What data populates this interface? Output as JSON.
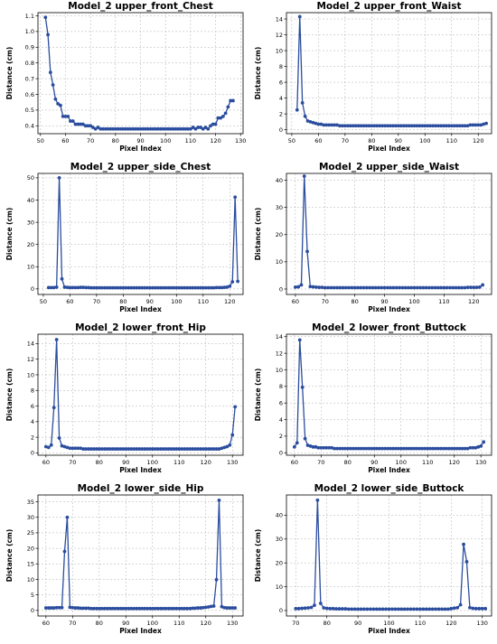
{
  "chart_data": [
    {
      "type": "line",
      "title": "Model_2 upper_front_Chest",
      "xlabel": "Pixel Index",
      "ylabel": "Distance (cm)",
      "xlim": [
        49,
        131
      ],
      "ylim": [
        0.35,
        1.12
      ],
      "xticks": [
        50,
        60,
        70,
        80,
        90,
        100,
        110,
        120,
        130
      ],
      "yticks": [
        0.4,
        0.5,
        0.6,
        0.7,
        0.8,
        0.9,
        1.0,
        1.1
      ],
      "ytick_labels": [
        "0.4",
        "0.5",
        "0.6",
        "0.7",
        "0.8",
        "0.9",
        "1.0",
        "1.1"
      ],
      "grid": true,
      "x": [
        52,
        53,
        54,
        55,
        56,
        57,
        58,
        59,
        60,
        61,
        62,
        63,
        64,
        65,
        66,
        67,
        68,
        69,
        70,
        71,
        72,
        73,
        74,
        75,
        76,
        77,
        78,
        79,
        80,
        81,
        82,
        83,
        84,
        85,
        86,
        87,
        88,
        89,
        90,
        91,
        92,
        93,
        94,
        95,
        96,
        97,
        98,
        99,
        100,
        101,
        102,
        103,
        104,
        105,
        106,
        107,
        108,
        109,
        110,
        111,
        112,
        113,
        114,
        115,
        116,
        117,
        118,
        119,
        120,
        121,
        122,
        123,
        124,
        125,
        126,
        127
      ],
      "values": [
        1.09,
        0.98,
        0.74,
        0.66,
        0.57,
        0.54,
        0.53,
        0.46,
        0.46,
        0.46,
        0.43,
        0.43,
        0.41,
        0.41,
        0.41,
        0.41,
        0.4,
        0.4,
        0.4,
        0.39,
        0.38,
        0.39,
        0.38,
        0.38,
        0.38,
        0.38,
        0.38,
        0.38,
        0.38,
        0.38,
        0.38,
        0.38,
        0.38,
        0.38,
        0.38,
        0.38,
        0.38,
        0.38,
        0.38,
        0.38,
        0.38,
        0.38,
        0.38,
        0.38,
        0.38,
        0.38,
        0.38,
        0.38,
        0.38,
        0.38,
        0.38,
        0.38,
        0.38,
        0.38,
        0.38,
        0.38,
        0.38,
        0.38,
        0.38,
        0.39,
        0.38,
        0.39,
        0.39,
        0.38,
        0.39,
        0.38,
        0.4,
        0.41,
        0.41,
        0.45,
        0.45,
        0.46,
        0.48,
        0.52,
        0.56,
        0.56
      ]
    },
    {
      "type": "line",
      "title": "Model_2 upper_front_Waist",
      "xlabel": "Pixel Index",
      "ylabel": "Distance (cm)",
      "xlim": [
        48,
        125
      ],
      "ylim": [
        -0.5,
        14.8
      ],
      "xticks": [
        50,
        60,
        70,
        80,
        90,
        100,
        110,
        120
      ],
      "yticks": [
        0,
        2,
        4,
        6,
        8,
        10,
        12,
        14
      ],
      "grid": true,
      "x": [
        52,
        53,
        54,
        55,
        56,
        57,
        58,
        59,
        60,
        61,
        62,
        63,
        64,
        65,
        66,
        67,
        68,
        69,
        70,
        71,
        72,
        73,
        74,
        75,
        76,
        77,
        78,
        79,
        80,
        81,
        82,
        83,
        84,
        85,
        86,
        87,
        88,
        89,
        90,
        91,
        92,
        93,
        94,
        95,
        96,
        97,
        98,
        99,
        100,
        101,
        102,
        103,
        104,
        105,
        106,
        107,
        108,
        109,
        110,
        111,
        112,
        113,
        114,
        115,
        116,
        117,
        118,
        119,
        120,
        121,
        122,
        123
      ],
      "values": [
        2.5,
        14.3,
        3.4,
        1.7,
        1.1,
        1.0,
        0.9,
        0.8,
        0.7,
        0.7,
        0.6,
        0.6,
        0.6,
        0.6,
        0.6,
        0.6,
        0.5,
        0.5,
        0.5,
        0.5,
        0.5,
        0.5,
        0.5,
        0.5,
        0.5,
        0.5,
        0.5,
        0.5,
        0.5,
        0.5,
        0.5,
        0.5,
        0.5,
        0.5,
        0.5,
        0.5,
        0.5,
        0.5,
        0.5,
        0.5,
        0.5,
        0.5,
        0.5,
        0.5,
        0.5,
        0.5,
        0.5,
        0.5,
        0.5,
        0.5,
        0.5,
        0.5,
        0.5,
        0.5,
        0.5,
        0.5,
        0.5,
        0.5,
        0.5,
        0.5,
        0.5,
        0.5,
        0.5,
        0.5,
        0.5,
        0.6,
        0.6,
        0.6,
        0.6,
        0.6,
        0.7,
        0.8
      ]
    },
    {
      "type": "line",
      "title": "Model_2 upper_side_Chest",
      "xlabel": "Pixel Index",
      "ylabel": "Distance (cm)",
      "xlim": [
        48,
        125
      ],
      "ylim": [
        -2.5,
        52
      ],
      "xticks": [
        50,
        60,
        70,
        80,
        90,
        100,
        110,
        120
      ],
      "yticks": [
        0,
        10,
        20,
        30,
        40,
        50
      ],
      "grid": true,
      "x": [
        52,
        53,
        54,
        55,
        56,
        57,
        58,
        59,
        60,
        61,
        62,
        63,
        64,
        65,
        66,
        67,
        68,
        69,
        70,
        71,
        72,
        73,
        74,
        75,
        76,
        77,
        78,
        79,
        80,
        81,
        82,
        83,
        84,
        85,
        86,
        87,
        88,
        89,
        90,
        91,
        92,
        93,
        94,
        95,
        96,
        97,
        98,
        99,
        100,
        101,
        102,
        103,
        104,
        105,
        106,
        107,
        108,
        109,
        110,
        111,
        112,
        113,
        114,
        115,
        116,
        117,
        118,
        119,
        120,
        121,
        122,
        123
      ],
      "values": [
        0.6,
        0.6,
        0.6,
        0.8,
        50.0,
        4.5,
        0.8,
        0.7,
        0.6,
        0.6,
        0.6,
        0.6,
        0.7,
        0.7,
        0.6,
        0.6,
        0.5,
        0.5,
        0.5,
        0.5,
        0.5,
        0.5,
        0.5,
        0.5,
        0.5,
        0.5,
        0.5,
        0.5,
        0.5,
        0.5,
        0.5,
        0.5,
        0.5,
        0.5,
        0.5,
        0.5,
        0.5,
        0.5,
        0.5,
        0.5,
        0.5,
        0.5,
        0.5,
        0.5,
        0.5,
        0.5,
        0.5,
        0.5,
        0.5,
        0.5,
        0.5,
        0.5,
        0.5,
        0.5,
        0.5,
        0.5,
        0.5,
        0.5,
        0.5,
        0.5,
        0.5,
        0.5,
        0.5,
        0.6,
        0.6,
        0.6,
        0.7,
        0.8,
        1.2,
        3.2,
        41.3,
        3.4
      ]
    },
    {
      "type": "line",
      "title": "Model_2 upper_side_Waist",
      "xlabel": "Pixel Index",
      "ylabel": "Distance (cm)",
      "xlim": [
        57,
        126
      ],
      "ylim": [
        -2,
        42.5
      ],
      "xticks": [
        60,
        70,
        80,
        90,
        100,
        110,
        120
      ],
      "yticks": [
        0,
        10,
        20,
        30,
        40
      ],
      "grid": true,
      "x": [
        60,
        61,
        62,
        63,
        64,
        65,
        66,
        67,
        68,
        69,
        70,
        71,
        72,
        73,
        74,
        75,
        76,
        77,
        78,
        79,
        80,
        81,
        82,
        83,
        84,
        85,
        86,
        87,
        88,
        89,
        90,
        91,
        92,
        93,
        94,
        95,
        96,
        97,
        98,
        99,
        100,
        101,
        102,
        103,
        104,
        105,
        106,
        107,
        108,
        109,
        110,
        111,
        112,
        113,
        114,
        115,
        116,
        117,
        118,
        119,
        120,
        121,
        122,
        123
      ],
      "values": [
        0.7,
        0.8,
        1.5,
        41.5,
        13.8,
        0.9,
        0.8,
        0.7,
        0.6,
        0.6,
        0.5,
        0.5,
        0.5,
        0.5,
        0.5,
        0.5,
        0.5,
        0.5,
        0.5,
        0.5,
        0.5,
        0.5,
        0.5,
        0.5,
        0.5,
        0.5,
        0.5,
        0.5,
        0.5,
        0.5,
        0.5,
        0.5,
        0.5,
        0.5,
        0.5,
        0.5,
        0.5,
        0.5,
        0.5,
        0.5,
        0.5,
        0.5,
        0.5,
        0.5,
        0.5,
        0.5,
        0.5,
        0.5,
        0.5,
        0.5,
        0.5,
        0.5,
        0.5,
        0.5,
        0.5,
        0.5,
        0.5,
        0.5,
        0.6,
        0.6,
        0.6,
        0.6,
        0.7,
        1.5
      ]
    },
    {
      "type": "line",
      "title": "Model_2 lower_front_Hip",
      "xlabel": "Pixel Index",
      "ylabel": "Distance (cm)",
      "xlim": [
        57,
        134
      ],
      "ylim": [
        -0.3,
        15.2
      ],
      "xticks": [
        60,
        70,
        80,
        90,
        100,
        110,
        120,
        130
      ],
      "yticks": [
        0,
        2,
        4,
        6,
        8,
        10,
        12,
        14
      ],
      "grid": true,
      "x": [
        60,
        61,
        62,
        63,
        64,
        65,
        66,
        67,
        68,
        69,
        70,
        71,
        72,
        73,
        74,
        75,
        76,
        77,
        78,
        79,
        80,
        81,
        82,
        83,
        84,
        85,
        86,
        87,
        88,
        89,
        90,
        91,
        92,
        93,
        94,
        95,
        96,
        97,
        98,
        99,
        100,
        101,
        102,
        103,
        104,
        105,
        106,
        107,
        108,
        109,
        110,
        111,
        112,
        113,
        114,
        115,
        116,
        117,
        118,
        119,
        120,
        121,
        122,
        123,
        124,
        125,
        126,
        127,
        128,
        129,
        130,
        131
      ],
      "values": [
        0.8,
        0.7,
        1.0,
        5.8,
        14.5,
        1.9,
        0.9,
        0.8,
        0.7,
        0.6,
        0.6,
        0.6,
        0.6,
        0.6,
        0.5,
        0.5,
        0.5,
        0.5,
        0.5,
        0.5,
        0.5,
        0.5,
        0.5,
        0.5,
        0.5,
        0.5,
        0.5,
        0.5,
        0.5,
        0.5,
        0.5,
        0.5,
        0.5,
        0.5,
        0.5,
        0.5,
        0.5,
        0.5,
        0.5,
        0.5,
        0.5,
        0.5,
        0.5,
        0.5,
        0.5,
        0.5,
        0.5,
        0.5,
        0.5,
        0.5,
        0.5,
        0.5,
        0.5,
        0.5,
        0.5,
        0.5,
        0.5,
        0.5,
        0.5,
        0.5,
        0.5,
        0.5,
        0.5,
        0.5,
        0.5,
        0.5,
        0.6,
        0.7,
        0.8,
        1.0,
        2.3,
        5.9
      ]
    },
    {
      "type": "line",
      "title": "Model_2 lower_front_Buttock",
      "xlabel": "Pixel Index",
      "ylabel": "Distance (cm)",
      "xlim": [
        57,
        134
      ],
      "ylim": [
        -0.3,
        14.3
      ],
      "xticks": [
        60,
        70,
        80,
        90,
        100,
        110,
        120,
        130
      ],
      "yticks": [
        0,
        2,
        4,
        6,
        8,
        10,
        12,
        14
      ],
      "grid": true,
      "x": [
        60,
        61,
        62,
        63,
        64,
        65,
        66,
        67,
        68,
        69,
        70,
        71,
        72,
        73,
        74,
        75,
        76,
        77,
        78,
        79,
        80,
        81,
        82,
        83,
        84,
        85,
        86,
        87,
        88,
        89,
        90,
        91,
        92,
        93,
        94,
        95,
        96,
        97,
        98,
        99,
        100,
        101,
        102,
        103,
        104,
        105,
        106,
        107,
        108,
        109,
        110,
        111,
        112,
        113,
        114,
        115,
        116,
        117,
        118,
        119,
        120,
        121,
        122,
        123,
        124,
        125,
        126,
        127,
        128,
        129,
        130,
        131
      ],
      "values": [
        0.7,
        1.2,
        13.6,
        7.9,
        1.7,
        0.9,
        0.8,
        0.7,
        0.7,
        0.6,
        0.6,
        0.6,
        0.6,
        0.6,
        0.6,
        0.5,
        0.5,
        0.5,
        0.5,
        0.5,
        0.5,
        0.5,
        0.5,
        0.5,
        0.5,
        0.5,
        0.5,
        0.5,
        0.5,
        0.5,
        0.5,
        0.5,
        0.5,
        0.5,
        0.5,
        0.5,
        0.5,
        0.5,
        0.5,
        0.5,
        0.5,
        0.5,
        0.5,
        0.5,
        0.5,
        0.5,
        0.5,
        0.5,
        0.5,
        0.5,
        0.5,
        0.5,
        0.5,
        0.5,
        0.5,
        0.5,
        0.5,
        0.5,
        0.5,
        0.5,
        0.5,
        0.5,
        0.5,
        0.5,
        0.5,
        0.5,
        0.6,
        0.6,
        0.6,
        0.7,
        0.8,
        1.3
      ]
    },
    {
      "type": "line",
      "title": "Model_2 lower_side_Hip",
      "xlabel": "Pixel Index",
      "ylabel": "Distance (cm)",
      "xlim": [
        57,
        134
      ],
      "ylim": [
        -1.8,
        37.2
      ],
      "xticks": [
        60,
        70,
        80,
        90,
        100,
        110,
        120,
        130
      ],
      "yticks": [
        0,
        5,
        10,
        15,
        20,
        25,
        30,
        35
      ],
      "grid": true,
      "x": [
        60,
        61,
        62,
        63,
        64,
        65,
        66,
        67,
        68,
        69,
        70,
        71,
        72,
        73,
        74,
        75,
        76,
        77,
        78,
        79,
        80,
        81,
        82,
        83,
        84,
        85,
        86,
        87,
        88,
        89,
        90,
        91,
        92,
        93,
        94,
        95,
        96,
        97,
        98,
        99,
        100,
        101,
        102,
        103,
        104,
        105,
        106,
        107,
        108,
        109,
        110,
        111,
        112,
        113,
        114,
        115,
        116,
        117,
        118,
        119,
        120,
        121,
        122,
        123,
        124,
        125,
        126,
        127,
        128,
        129,
        130,
        131
      ],
      "values": [
        0.8,
        0.8,
        0.8,
        0.8,
        0.9,
        0.9,
        0.9,
        19.0,
        30.0,
        1.0,
        0.9,
        0.8,
        0.8,
        0.7,
        0.7,
        0.7,
        0.7,
        0.6,
        0.6,
        0.6,
        0.6,
        0.6,
        0.6,
        0.6,
        0.6,
        0.6,
        0.6,
        0.6,
        0.6,
        0.6,
        0.6,
        0.6,
        0.6,
        0.6,
        0.6,
        0.6,
        0.6,
        0.6,
        0.6,
        0.6,
        0.6,
        0.6,
        0.6,
        0.6,
        0.6,
        0.6,
        0.6,
        0.6,
        0.6,
        0.6,
        0.6,
        0.6,
        0.6,
        0.6,
        0.6,
        0.7,
        0.7,
        0.8,
        0.8,
        0.9,
        1.0,
        1.1,
        1.3,
        1.4,
        9.9,
        35.5,
        1.2,
        0.9,
        0.8,
        0.8,
        0.8,
        0.8
      ]
    },
    {
      "type": "line",
      "title": "Model_2 lower_side_Buttock",
      "xlabel": "Pixel Index",
      "ylabel": "Distance (cm)",
      "xlim": [
        67,
        133
      ],
      "ylim": [
        -2.3,
        48.5
      ],
      "xticks": [
        70,
        80,
        90,
        100,
        110,
        120,
        130
      ],
      "yticks": [
        0,
        10,
        20,
        30,
        40
      ],
      "grid": true,
      "x": [
        70,
        71,
        72,
        73,
        74,
        75,
        76,
        77,
        78,
        79,
        80,
        81,
        82,
        83,
        84,
        85,
        86,
        87,
        88,
        89,
        90,
        91,
        92,
        93,
        94,
        95,
        96,
        97,
        98,
        99,
        100,
        101,
        102,
        103,
        104,
        105,
        106,
        107,
        108,
        109,
        110,
        111,
        112,
        113,
        114,
        115,
        116,
        117,
        118,
        119,
        120,
        121,
        122,
        123,
        124,
        125,
        126,
        127,
        128,
        129,
        130,
        131
      ],
      "values": [
        0.8,
        0.8,
        0.9,
        1.0,
        1.1,
        1.3,
        2.2,
        46.3,
        3.0,
        1.1,
        0.9,
        0.8,
        0.8,
        0.7,
        0.7,
        0.7,
        0.7,
        0.6,
        0.6,
        0.6,
        0.6,
        0.6,
        0.6,
        0.6,
        0.6,
        0.6,
        0.6,
        0.6,
        0.6,
        0.6,
        0.6,
        0.6,
        0.6,
        0.6,
        0.6,
        0.6,
        0.6,
        0.6,
        0.6,
        0.6,
        0.6,
        0.6,
        0.6,
        0.6,
        0.6,
        0.6,
        0.6,
        0.6,
        0.6,
        0.6,
        0.8,
        1.0,
        1.2,
        2.4,
        27.8,
        20.5,
        1.2,
        0.9,
        0.8,
        0.8,
        0.8,
        0.8
      ]
    }
  ]
}
